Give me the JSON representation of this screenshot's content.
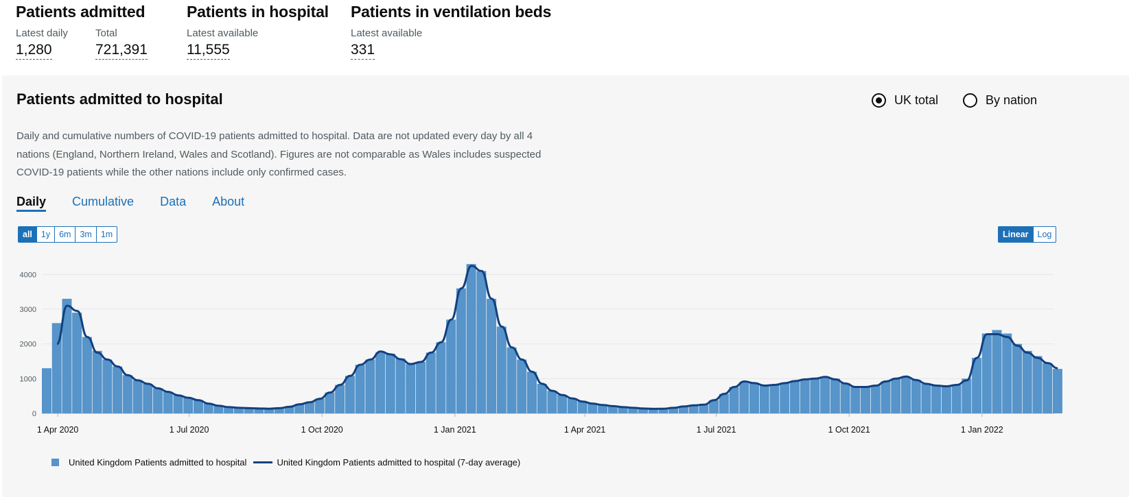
{
  "headline": {
    "admitted": {
      "title": "Patients admitted",
      "latest_label": "Latest daily",
      "latest_value": "1,280",
      "total_label": "Total",
      "total_value": "721,391"
    },
    "in_hospital": {
      "title": "Patients in hospital",
      "label": "Latest available",
      "value": "11,555"
    },
    "ventilation": {
      "title": "Patients in ventilation beds",
      "label": "Latest available",
      "value": "331"
    }
  },
  "card": {
    "title": "Patients admitted to hospital",
    "radios": [
      {
        "label": "UK total",
        "selected": true
      },
      {
        "label": "By nation",
        "selected": false
      }
    ],
    "description": "Daily and cumulative numbers of COVID-19 patients admitted to hospital. Data are not updated every day by all 4 nations (England, Northern Ireland, Wales and Scotland). Figures are not comparable as Wales includes suspected COVID-19 patients while the other nations include only confirmed cases.",
    "tabs": [
      {
        "label": "Daily",
        "active": true
      },
      {
        "label": "Cumulative",
        "active": false
      },
      {
        "label": "Data",
        "active": false
      },
      {
        "label": "About",
        "active": false
      }
    ],
    "range_buttons": [
      {
        "label": "all",
        "active": true
      },
      {
        "label": "1y",
        "active": false
      },
      {
        "label": "6m",
        "active": false
      },
      {
        "label": "3m",
        "active": false
      },
      {
        "label": "1m",
        "active": false
      }
    ],
    "scale_buttons": [
      {
        "label": "Linear",
        "active": true
      },
      {
        "label": "Log",
        "active": false
      }
    ]
  },
  "colors": {
    "bar": "#5694ca",
    "line": "#12407f",
    "accent": "#1d70b8"
  },
  "chart_data": {
    "type": "bar",
    "title": "",
    "xlabel": "",
    "ylabel": "",
    "x_start": "2020-03-21",
    "x_end": "2022-02-20",
    "ylim": [
      0,
      4600
    ],
    "y_ticks": [
      0,
      1000,
      2000,
      3000,
      4000
    ],
    "x_ticks": [
      {
        "date": "2020-04-01",
        "label": "1 Apr 2020"
      },
      {
        "date": "2020-07-01",
        "label": "1 Jul 2020"
      },
      {
        "date": "2020-10-01",
        "label": "1 Oct 2020"
      },
      {
        "date": "2021-01-01",
        "label": "1 Jan 2021"
      },
      {
        "date": "2021-04-01",
        "label": "1 Apr 2021"
      },
      {
        "date": "2021-07-01",
        "label": "1 Jul 2021"
      },
      {
        "date": "2021-10-01",
        "label": "1 Oct 2021"
      },
      {
        "date": "2022-01-01",
        "label": "1 Jan 2022"
      }
    ],
    "grid": true,
    "legend_position": "bottom-left",
    "series": [
      {
        "name": "United Kingdom Patients admitted to hospital",
        "type": "bar",
        "x": [
          "2020-03-21",
          "2020-03-28",
          "2020-04-04",
          "2020-04-11",
          "2020-04-18",
          "2020-04-25",
          "2020-05-02",
          "2020-05-09",
          "2020-05-16",
          "2020-05-23",
          "2020-05-30",
          "2020-06-06",
          "2020-06-13",
          "2020-06-20",
          "2020-06-27",
          "2020-07-04",
          "2020-07-11",
          "2020-07-18",
          "2020-07-25",
          "2020-08-01",
          "2020-08-08",
          "2020-08-15",
          "2020-08-22",
          "2020-08-29",
          "2020-09-05",
          "2020-09-12",
          "2020-09-19",
          "2020-09-26",
          "2020-10-03",
          "2020-10-10",
          "2020-10-17",
          "2020-10-24",
          "2020-10-31",
          "2020-11-07",
          "2020-11-14",
          "2020-11-21",
          "2020-11-28",
          "2020-12-05",
          "2020-12-12",
          "2020-12-19",
          "2020-12-26",
          "2021-01-02",
          "2021-01-09",
          "2021-01-16",
          "2021-01-23",
          "2021-01-30",
          "2021-02-06",
          "2021-02-13",
          "2021-02-20",
          "2021-02-27",
          "2021-03-06",
          "2021-03-13",
          "2021-03-20",
          "2021-03-27",
          "2021-04-03",
          "2021-04-10",
          "2021-04-17",
          "2021-04-24",
          "2021-05-01",
          "2021-05-08",
          "2021-05-15",
          "2021-05-22",
          "2021-05-29",
          "2021-06-05",
          "2021-06-12",
          "2021-06-19",
          "2021-06-26",
          "2021-07-03",
          "2021-07-10",
          "2021-07-17",
          "2021-07-24",
          "2021-07-31",
          "2021-08-07",
          "2021-08-14",
          "2021-08-21",
          "2021-08-28",
          "2021-09-04",
          "2021-09-11",
          "2021-09-18",
          "2021-09-25",
          "2021-10-02",
          "2021-10-09",
          "2021-10-16",
          "2021-10-23",
          "2021-10-30",
          "2021-11-06",
          "2021-11-13",
          "2021-11-20",
          "2021-11-27",
          "2021-12-04",
          "2021-12-11",
          "2021-12-18",
          "2021-12-25",
          "2022-01-01",
          "2022-01-08",
          "2022-01-15",
          "2022-01-22",
          "2022-01-29",
          "2022-02-05",
          "2022-02-12",
          "2022-02-19"
        ],
        "values": [
          1300,
          2600,
          3300,
          2900,
          2200,
          1800,
          1550,
          1350,
          1100,
          950,
          850,
          720,
          620,
          520,
          450,
          380,
          280,
          220,
          180,
          160,
          150,
          140,
          135,
          150,
          190,
          260,
          320,
          420,
          600,
          820,
          1080,
          1400,
          1550,
          1750,
          1720,
          1580,
          1420,
          1480,
          1750,
          2050,
          2700,
          3600,
          4300,
          4100,
          3300,
          2500,
          1900,
          1550,
          1200,
          850,
          650,
          530,
          430,
          340,
          280,
          240,
          210,
          180,
          160,
          140,
          130,
          135,
          160,
          200,
          230,
          250,
          380,
          560,
          760,
          900,
          880,
          800,
          820,
          870,
          930,
          980,
          1000,
          1050,
          1000,
          870,
          760,
          760,
          800,
          920,
          1000,
          1050,
          960,
          850,
          800,
          780,
          820,
          1000,
          1600,
          2300,
          2400,
          2300,
          2000,
          1800,
          1650,
          1450,
          1280
        ]
      },
      {
        "name": "United Kingdom Patients admitted to hospital (7-day average)",
        "type": "line",
        "x": [
          "2020-03-28",
          "2020-04-04",
          "2020-04-11",
          "2020-04-18",
          "2020-04-25",
          "2020-05-02",
          "2020-05-09",
          "2020-05-16",
          "2020-05-23",
          "2020-05-30",
          "2020-06-06",
          "2020-06-13",
          "2020-06-20",
          "2020-06-27",
          "2020-07-04",
          "2020-07-11",
          "2020-07-18",
          "2020-07-25",
          "2020-08-01",
          "2020-08-08",
          "2020-08-15",
          "2020-08-22",
          "2020-08-29",
          "2020-09-05",
          "2020-09-12",
          "2020-09-19",
          "2020-09-26",
          "2020-10-03",
          "2020-10-10",
          "2020-10-17",
          "2020-10-24",
          "2020-10-31",
          "2020-11-07",
          "2020-11-14",
          "2020-11-21",
          "2020-11-28",
          "2020-12-05",
          "2020-12-12",
          "2020-12-19",
          "2020-12-26",
          "2021-01-02",
          "2021-01-09",
          "2021-01-16",
          "2021-01-23",
          "2021-01-30",
          "2021-02-06",
          "2021-02-13",
          "2021-02-20",
          "2021-02-27",
          "2021-03-06",
          "2021-03-13",
          "2021-03-20",
          "2021-03-27",
          "2021-04-03",
          "2021-04-10",
          "2021-04-17",
          "2021-04-24",
          "2021-05-01",
          "2021-05-08",
          "2021-05-15",
          "2021-05-22",
          "2021-05-29",
          "2021-06-05",
          "2021-06-12",
          "2021-06-19",
          "2021-06-26",
          "2021-07-03",
          "2021-07-10",
          "2021-07-17",
          "2021-07-24",
          "2021-07-31",
          "2021-08-07",
          "2021-08-14",
          "2021-08-21",
          "2021-08-28",
          "2021-09-04",
          "2021-09-11",
          "2021-09-18",
          "2021-09-25",
          "2021-10-02",
          "2021-10-09",
          "2021-10-16",
          "2021-10-23",
          "2021-10-30",
          "2021-11-06",
          "2021-11-13",
          "2021-11-20",
          "2021-11-27",
          "2021-12-04",
          "2021-12-11",
          "2021-12-18",
          "2021-12-25",
          "2022-01-01",
          "2022-01-08",
          "2022-01-15",
          "2022-01-22",
          "2022-01-29",
          "2022-02-05",
          "2022-02-12",
          "2022-02-19"
        ],
        "values": [
          2000,
          3100,
          2950,
          2200,
          1750,
          1550,
          1350,
          1100,
          950,
          850,
          720,
          620,
          520,
          450,
          380,
          280,
          220,
          180,
          160,
          150,
          140,
          135,
          150,
          190,
          260,
          320,
          420,
          600,
          820,
          1080,
          1400,
          1550,
          1780,
          1700,
          1560,
          1420,
          1480,
          1750,
          2050,
          2700,
          3600,
          4250,
          4100,
          3300,
          2500,
          1900,
          1550,
          1200,
          850,
          650,
          530,
          430,
          340,
          280,
          240,
          210,
          180,
          160,
          140,
          130,
          135,
          160,
          200,
          230,
          250,
          380,
          560,
          760,
          920,
          870,
          800,
          820,
          870,
          930,
          980,
          1000,
          1050,
          980,
          860,
          760,
          760,
          800,
          920,
          1000,
          1060,
          960,
          850,
          800,
          780,
          820,
          950,
          1600,
          2280,
          2280,
          2200,
          1950,
          1750,
          1600,
          1450,
          1300
        ]
      }
    ]
  }
}
